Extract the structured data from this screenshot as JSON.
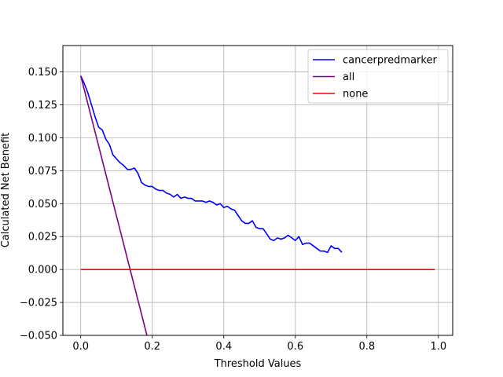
{
  "chart_data": {
    "type": "line",
    "title": "",
    "xlabel": "Threshold Values",
    "ylabel": "Calculated Net Benefit",
    "xlim": [
      -0.05,
      1.04
    ],
    "ylim": [
      -0.05,
      0.17
    ],
    "grid": true,
    "legend_position": "top-right",
    "x_ticks": [
      "0.0",
      "0.2",
      "0.4",
      "0.6",
      "0.8",
      "1.0"
    ],
    "x_tick_values": [
      0.0,
      0.2,
      0.4,
      0.6,
      0.8,
      1.0
    ],
    "y_ticks": [
      "−0.050",
      "−0.025",
      "0.000",
      "0.025",
      "0.050",
      "0.075",
      "0.100",
      "0.125",
      "0.150"
    ],
    "y_tick_values": [
      -0.05,
      -0.025,
      0.0,
      0.025,
      0.05,
      0.075,
      0.1,
      0.125,
      0.15
    ],
    "series": [
      {
        "name": "cancerpredmarker",
        "color": "#0000ff",
        "x": [
          0.0,
          0.01,
          0.02,
          0.03,
          0.04,
          0.05,
          0.06,
          0.07,
          0.08,
          0.09,
          0.1,
          0.11,
          0.12,
          0.13,
          0.14,
          0.15,
          0.16,
          0.17,
          0.18,
          0.19,
          0.2,
          0.21,
          0.22,
          0.23,
          0.24,
          0.25,
          0.26,
          0.27,
          0.28,
          0.29,
          0.3,
          0.31,
          0.32,
          0.33,
          0.34,
          0.35,
          0.36,
          0.37,
          0.38,
          0.39,
          0.4,
          0.41,
          0.42,
          0.43,
          0.44,
          0.45,
          0.46,
          0.47,
          0.48,
          0.49,
          0.5,
          0.51,
          0.52,
          0.53,
          0.54,
          0.55,
          0.56,
          0.57,
          0.58,
          0.59,
          0.6,
          0.61,
          0.62,
          0.63,
          0.64,
          0.65,
          0.66,
          0.67,
          0.68,
          0.69,
          0.7,
          0.71,
          0.72,
          0.73
        ],
        "y": [
          0.147,
          0.141,
          0.134,
          0.125,
          0.116,
          0.108,
          0.106,
          0.099,
          0.095,
          0.087,
          0.084,
          0.081,
          0.079,
          0.076,
          0.076,
          0.077,
          0.073,
          0.066,
          0.064,
          0.063,
          0.063,
          0.061,
          0.06,
          0.06,
          0.058,
          0.057,
          0.055,
          0.057,
          0.054,
          0.055,
          0.054,
          0.054,
          0.052,
          0.052,
          0.052,
          0.051,
          0.052,
          0.051,
          0.049,
          0.05,
          0.047,
          0.048,
          0.046,
          0.045,
          0.041,
          0.037,
          0.035,
          0.035,
          0.037,
          0.032,
          0.031,
          0.031,
          0.027,
          0.023,
          0.022,
          0.024,
          0.023,
          0.024,
          0.026,
          0.024,
          0.022,
          0.025,
          0.019,
          0.02,
          0.02,
          0.018,
          0.016,
          0.014,
          0.014,
          0.013,
          0.018,
          0.016,
          0.016,
          0.013
        ]
      },
      {
        "name": "all",
        "color": "#800080",
        "x": [
          0.0,
          0.185
        ],
        "y": [
          0.147,
          -0.05
        ]
      },
      {
        "name": "none",
        "color": "#ff0000",
        "x": [
          0.0,
          0.99
        ],
        "y": [
          0.0,
          0.0
        ]
      }
    ]
  }
}
